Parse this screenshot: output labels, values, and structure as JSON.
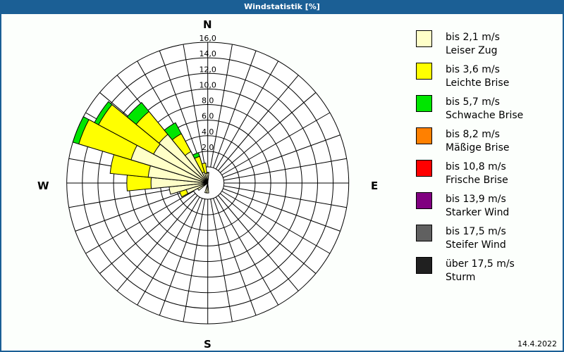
{
  "window": {
    "title": "Windstatistik [%]"
  },
  "date": "14.4.2022",
  "directions": {
    "n": "N",
    "e": "E",
    "s": "S",
    "w": "W"
  },
  "legend": [
    {
      "line1": "bis 2,1 m/s",
      "line2": "Leiser Zug",
      "color": "#ffffc8"
    },
    {
      "line1": "bis 3,6 m/s",
      "line2": "Leichte Brise",
      "color": "#ffff00"
    },
    {
      "line1": "bis 5,7 m/s",
      "line2": "Schwache Brise",
      "color": "#00e600"
    },
    {
      "line1": "bis 8,2 m/s",
      "line2": "Mäßige Brise",
      "color": "#ff8000"
    },
    {
      "line1": "bis 10,8 m/s",
      "line2": "Frische Brise",
      "color": "#ff0000"
    },
    {
      "line1": "bis 13,9 m/s",
      "line2": "Starker Wind",
      "color": "#800080"
    },
    {
      "line1": "bis 17,5 m/s",
      "line2": "Steifer Wind",
      "color": "#606060"
    },
    {
      "line1": "über 17,5 m/s",
      "line2": "Sturm",
      "color": "#202020"
    }
  ],
  "chart_data": {
    "type": "wind-rose",
    "title": "Windstatistik [%]",
    "radial_ticks": [
      "2,0",
      "4,0",
      "6,0",
      "8,0",
      "10,0",
      "12,0",
      "14,0",
      "16,0"
    ],
    "radial_range": [
      0,
      16
    ],
    "sector_width_deg": 11.25,
    "bands": [
      "bis 2,1 m/s",
      "bis 3,6 m/s",
      "bis 5,7 m/s",
      "bis 8,2 m/s",
      "bis 10,8 m/s",
      "bis 13,9 m/s",
      "bis 17,5 m/s",
      "über 17,5 m/s"
    ],
    "petals": [
      {
        "direction_deg": 0,
        "cumulative": [
          0.1,
          0.2
        ]
      },
      {
        "direction_deg": 180,
        "cumulative": [
          0.1
        ]
      },
      {
        "direction_deg": 191.25,
        "cumulative": [
          0.1
        ]
      },
      {
        "direction_deg": 236.25,
        "cumulative": [
          0.3
        ]
      },
      {
        "direction_deg": 247.5,
        "cumulative": [
          0.8,
          1.7
        ]
      },
      {
        "direction_deg": 258.75,
        "cumulative": [
          2.9
        ]
      },
      {
        "direction_deg": 270,
        "cumulative": [
          5.2,
          8.3
        ]
      },
      {
        "direction_deg": 281.25,
        "cumulative": [
          5.6,
          10.5
        ]
      },
      {
        "direction_deg": 292.5,
        "cumulative": [
          8.2,
          15.2,
          16.0
        ]
      },
      {
        "direction_deg": 303.75,
        "cumulative": [
          5.8,
          13.8,
          14.4
        ]
      },
      {
        "direction_deg": 315,
        "cumulative": [
          6.0,
          9.8,
          11.3
        ]
      },
      {
        "direction_deg": 326.25,
        "cumulative": [
          2.5,
          5.1,
          6.7
        ]
      },
      {
        "direction_deg": 337.5,
        "cumulative": [
          0.3,
          1.5,
          2.0
        ]
      },
      {
        "direction_deg": 348.75,
        "cumulative": [
          0.1,
          0.5
        ]
      }
    ],
    "legend_position": "right"
  }
}
